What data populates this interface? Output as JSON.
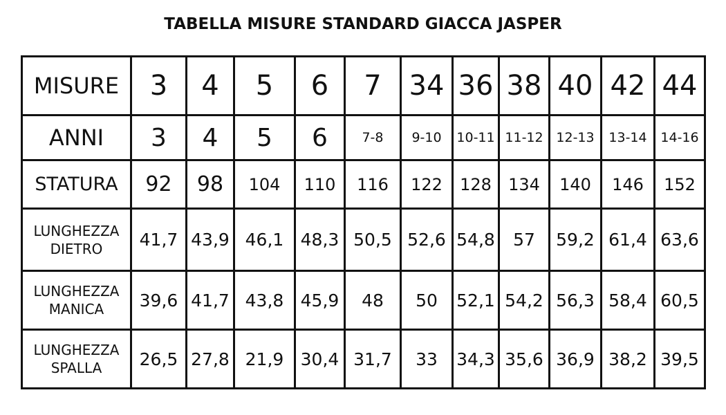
{
  "title": "TABELLA MISURE STANDARD GIACCA JASPER",
  "chart_data": {
    "type": "table",
    "rows": [
      {
        "label": [
          "MISURE"
        ],
        "values": [
          "3",
          "4",
          "5",
          "6",
          "7",
          "34",
          "36",
          "38",
          "40",
          "42",
          "44"
        ]
      },
      {
        "label": [
          "ANNI"
        ],
        "values": [
          "3",
          "4",
          "5",
          "6",
          "7-8",
          "9-10",
          "10-11",
          "11-12",
          "12-13",
          "13-14",
          "14-16"
        ]
      },
      {
        "label": [
          "STATURA"
        ],
        "values": [
          "92",
          "98",
          "104",
          "110",
          "116",
          "122",
          "128",
          "134",
          "140",
          "146",
          "152"
        ]
      },
      {
        "label": [
          "LUNGHEZZA",
          "DIETRO"
        ],
        "values": [
          "41,7",
          "43,9",
          "46,1",
          "48,3",
          "50,5",
          "52,6",
          "54,8",
          "57",
          "59,2",
          "61,4",
          "63,6"
        ]
      },
      {
        "label": [
          "LUNGHEZZA",
          "MANICA"
        ],
        "values": [
          "39,6",
          "41,7",
          "43,8",
          "45,9",
          "48",
          "50",
          "52,1",
          "54,2",
          "56,3",
          "58,4",
          "60,5"
        ]
      },
      {
        "label": [
          "LUNGHEZZA",
          "SPALLA"
        ],
        "values": [
          "26,5",
          "27,8",
          "21,9",
          "30,4",
          "31,7",
          "33",
          "34,3",
          "35,6",
          "36,9",
          "38,2",
          "39,5"
        ]
      }
    ]
  }
}
